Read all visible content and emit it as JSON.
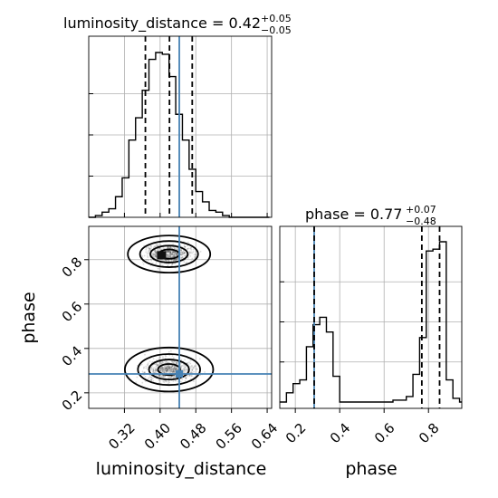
{
  "chart_data": [
    {
      "panel": "luminosity_distance-marginal",
      "type": "histogram",
      "title": "luminosity_distance = 0.42",
      "title_value": {
        "name": "luminosity_distance",
        "median": "0.42",
        "plus": "+0.05",
        "minus": "−0.05"
      },
      "xlim": [
        0.24,
        0.65
      ],
      "grid": true,
      "bin_edges": [
        0.24,
        0.255,
        0.27,
        0.285,
        0.3,
        0.315,
        0.33,
        0.345,
        0.36,
        0.375,
        0.39,
        0.405,
        0.42,
        0.435,
        0.45,
        0.465,
        0.48,
        0.495,
        0.51,
        0.525,
        0.54,
        0.555,
        0.57,
        0.585,
        0.6,
        0.615,
        0.63,
        0.645
      ],
      "counts": [
        0,
        1,
        3,
        5,
        12,
        23,
        45,
        58,
        74,
        92,
        96,
        95,
        82,
        60,
        45,
        28,
        15,
        9,
        4,
        3,
        1,
        0,
        0,
        0,
        0,
        0,
        0
      ],
      "quantiles": [
        0.367,
        0.421,
        0.472
      ],
      "truth": 0.443
    },
    {
      "panel": "phase-vs-luminosity_distance",
      "type": "scatter",
      "xlabel": "luminosity_distance",
      "ylabel": "phase",
      "xlim": [
        0.24,
        0.65
      ],
      "ylim": [
        0.13,
        0.95
      ],
      "grid": true,
      "x_ticks": [
        "0.32",
        "0.40",
        "0.48",
        "0.56",
        "0.64"
      ],
      "y_ticks": [
        "0.2",
        "0.4",
        "0.6",
        "0.8"
      ],
      "clusters": [
        {
          "x_center": 0.42,
          "y_center": 0.825,
          "x_sd": 0.042,
          "y_sd": 0.038
        },
        {
          "x_center": 0.42,
          "y_center": 0.305,
          "x_sd": 0.045,
          "y_sd": 0.045
        }
      ],
      "truth": {
        "x": 0.443,
        "y": 0.285
      }
    },
    {
      "panel": "phase-marginal",
      "type": "histogram",
      "title": "phase = 0.77",
      "title_value": {
        "name": "phase",
        "median": "0.77",
        "plus": "+0.07",
        "minus": "−0.48"
      },
      "xlabel": "phase",
      "xlim": [
        0.13,
        0.95
      ],
      "grid": true,
      "x_ticks": [
        "0.2",
        "0.4",
        "0.6",
        "0.8"
      ],
      "bin_edges": [
        0.13,
        0.16,
        0.19,
        0.22,
        0.25,
        0.28,
        0.31,
        0.34,
        0.37,
        0.4,
        0.43,
        0.46,
        0.49,
        0.52,
        0.55,
        0.58,
        0.61,
        0.64,
        0.67,
        0.7,
        0.73,
        0.76,
        0.79,
        0.82,
        0.85,
        0.88,
        0.91,
        0.94,
        0.97
      ],
      "counts": [
        0,
        5,
        10,
        12,
        30,
        42,
        46,
        38,
        14,
        0,
        0,
        0,
        0,
        0,
        0,
        0,
        0,
        1,
        1,
        3,
        15,
        35,
        82,
        83,
        87,
        12,
        2,
        0
      ],
      "quantiles": [
        0.285,
        0.77,
        0.85
      ],
      "truth": 0.285
    }
  ]
}
